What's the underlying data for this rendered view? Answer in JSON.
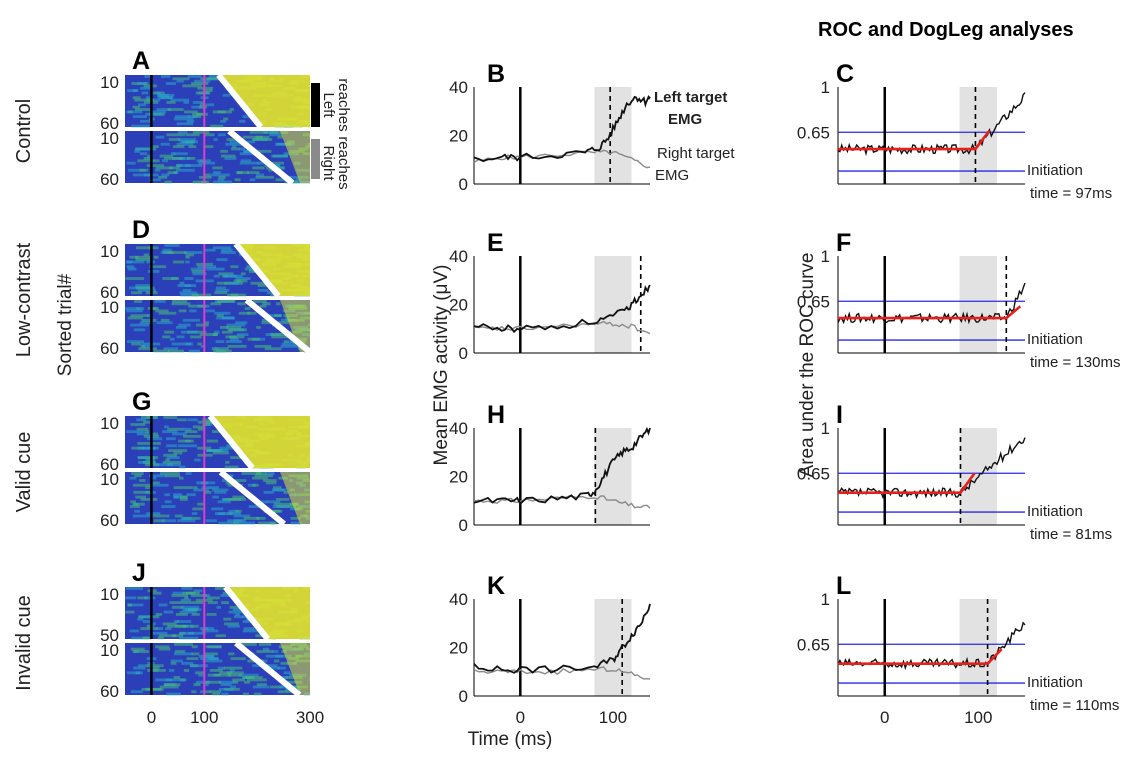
{
  "figure": {
    "title": "ROC and DogLeg analyses",
    "conditions": [
      "Control",
      "Low-contrast",
      "Valid cue",
      "Invalid cue"
    ],
    "raster_ylabel": "Sorted trial#",
    "emg_ylabel": "Mean EMG activity (μV)",
    "roc_ylabel": "Area under the ROC curve",
    "time_xlabel": "Time (ms)",
    "left_reaches_label": [
      "Left",
      "reaches"
    ],
    "right_reaches_label": [
      "Right",
      "reaches"
    ],
    "left_target_label": [
      "Left target",
      "EMG"
    ],
    "right_target_label": [
      "Right target",
      "EMG"
    ],
    "initiation_label": "Initiation",
    "colors": {
      "left_emg": "#111111",
      "right_emg": "#8a8a8a",
      "roc_curve": "#111111",
      "dogleg_fit": "#e8201c",
      "threshold_lines": "#2a2ae6",
      "analysis_window": "#e2e2e2",
      "target_onset_marker": "#000000",
      "marker_100ms": "#e23cc8",
      "left_reach_bar": "#000000",
      "right_reach_bar": "#8a8a8a"
    }
  },
  "chart_data": [
    {
      "panel": "A/D/G/J",
      "type": "heatmap",
      "description_panels": [
        "A",
        "D",
        "G",
        "J"
      ],
      "x_ticks": [
        "0",
        "100",
        "300"
      ],
      "xlim": [
        -50,
        300
      ],
      "rows": [
        {
          "label": "A",
          "condition": "Control",
          "left_ticks": [
            "10",
            "60"
          ],
          "right_ticks": [
            "10",
            "60"
          ]
        },
        {
          "label": "D",
          "condition": "Low-contrast",
          "left_ticks": [
            "10",
            "60"
          ],
          "right_ticks": [
            "10",
            "60"
          ]
        },
        {
          "label": "G",
          "condition": "Valid cue",
          "left_ticks": [
            "10",
            "60"
          ],
          "right_ticks": [
            "10",
            "60"
          ]
        },
        {
          "label": "J",
          "condition": "Invalid cue",
          "left_ticks": [
            "10",
            "50"
          ],
          "right_ticks": [
            "10",
            "60"
          ]
        }
      ]
    },
    {
      "panel": "B/E/H/K",
      "type": "line",
      "x_ticks": [
        "0",
        "100"
      ],
      "xlim": [
        -50,
        140
      ],
      "ylim": [
        0,
        40
      ],
      "y_ticks": [
        "0",
        "20",
        "40"
      ],
      "rows": [
        {
          "label": "B",
          "window": [
            80,
            120
          ],
          "initiation": 97,
          "left": [
            [
              -50,
              10
            ],
            [
              -20,
              11
            ],
            [
              0,
              11
            ],
            [
              40,
              12
            ],
            [
              70,
              13
            ],
            [
              85,
              15
            ],
            [
              95,
              19
            ],
            [
              105,
              26
            ],
            [
              115,
              33
            ],
            [
              125,
              36
            ],
            [
              135,
              34
            ],
            [
              140,
              36
            ]
          ],
          "right": [
            [
              -50,
              9
            ],
            [
              -20,
              11
            ],
            [
              0,
              11
            ],
            [
              40,
              12
            ],
            [
              80,
              13
            ],
            [
              100,
              13
            ],
            [
              120,
              10
            ],
            [
              140,
              7
            ]
          ]
        },
        {
          "label": "E",
          "window": [
            80,
            120
          ],
          "initiation": 130,
          "left": [
            [
              -50,
              11
            ],
            [
              -20,
              10
            ],
            [
              0,
              10
            ],
            [
              40,
              11
            ],
            [
              80,
              13
            ],
            [
              100,
              15
            ],
            [
              115,
              18
            ],
            [
              125,
              22
            ],
            [
              135,
              26
            ],
            [
              140,
              28
            ]
          ],
          "right": [
            [
              -50,
              10
            ],
            [
              -20,
              10
            ],
            [
              0,
              10
            ],
            [
              40,
              11
            ],
            [
              80,
              12
            ],
            [
              100,
              12
            ],
            [
              120,
              11
            ],
            [
              140,
              8
            ]
          ]
        },
        {
          "label": "H",
          "window": [
            80,
            120
          ],
          "initiation": 81,
          "left": [
            [
              -50,
              10
            ],
            [
              -20,
              10
            ],
            [
              0,
              10
            ],
            [
              40,
              11
            ],
            [
              70,
              12
            ],
            [
              80,
              14
            ],
            [
              90,
              20
            ],
            [
              100,
              26
            ],
            [
              110,
              30
            ],
            [
              120,
              32
            ],
            [
              130,
              36
            ],
            [
              140,
              40
            ]
          ],
          "right": [
            [
              -50,
              10
            ],
            [
              -20,
              10
            ],
            [
              0,
              10
            ],
            [
              40,
              11
            ],
            [
              80,
              12
            ],
            [
              100,
              10
            ],
            [
              120,
              8
            ],
            [
              140,
              7
            ]
          ]
        },
        {
          "label": "K",
          "window": [
            80,
            120
          ],
          "initiation": 110,
          "left": [
            [
              -50,
              12
            ],
            [
              -20,
              11
            ],
            [
              0,
              11
            ],
            [
              40,
              11
            ],
            [
              80,
              12
            ],
            [
              100,
              15
            ],
            [
              110,
              20
            ],
            [
              120,
              25
            ],
            [
              130,
              30
            ],
            [
              140,
              38
            ]
          ],
          "right": [
            [
              -50,
              10
            ],
            [
              -20,
              10
            ],
            [
              0,
              10
            ],
            [
              40,
              10
            ],
            [
              80,
              11
            ],
            [
              100,
              11
            ],
            [
              120,
              9
            ],
            [
              140,
              7
            ]
          ]
        }
      ]
    },
    {
      "panel": "C/F/I/L",
      "type": "line",
      "x_ticks": [
        "0",
        "100"
      ],
      "xlim": [
        -50,
        150
      ],
      "ylim": [
        0.25,
        1
      ],
      "y_ticks": [
        "0.65",
        "1"
      ],
      "thresholds": [
        0.65,
        0.35
      ],
      "rows": [
        {
          "label": "C",
          "window": [
            80,
            120
          ],
          "initiation_ms": 97,
          "initiation_text": "time = 97ms",
          "baseline": 0.52,
          "end_value": 0.93
        },
        {
          "label": "F",
          "window": [
            80,
            120
          ],
          "initiation_ms": 130,
          "initiation_text": "time = 130ms",
          "baseline": 0.52,
          "end_value": 0.78
        },
        {
          "label": "I",
          "window": [
            80,
            120
          ],
          "initiation_ms": 81,
          "initiation_text": "time = 81ms",
          "baseline": 0.5,
          "end_value": 0.93
        },
        {
          "label": "L",
          "window": [
            80,
            120
          ],
          "initiation_ms": 110,
          "initiation_text": "time = 110ms",
          "baseline": 0.5,
          "end_value": 0.82
        }
      ]
    }
  ]
}
